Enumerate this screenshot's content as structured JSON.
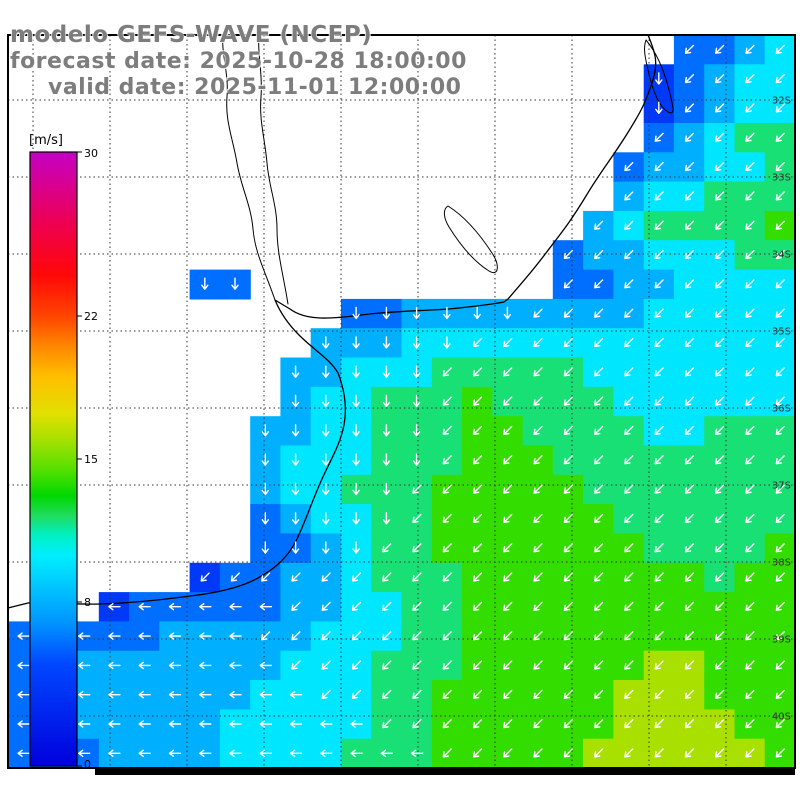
{
  "title": {
    "line1": "modelo GEFS-WAVE (NCEP)",
    "line2": "forecast date: 2025-10-28 18:00:00",
    "line3": "valid date: 2025-11-01 12:00:00"
  },
  "colorbar": {
    "unit_label": "[m/s]",
    "min": 0,
    "max": 30,
    "ticks": [
      "30",
      "22",
      "15",
      "8",
      "0"
    ]
  },
  "axes": {
    "lat_labels": [
      "32S",
      "33S",
      "34S",
      "35S",
      "36S",
      "37S",
      "38S",
      "39S",
      "40S"
    ]
  },
  "chart_data": {
    "type": "heatmap",
    "title": "GEFS-WAVE wind/wave field with direction arrows",
    "units": "m/s",
    "grid_cols": 26,
    "grid_rows": 25,
    "speed_encoding": "each char: digit*2 = speed in m/s, '.' = land",
    "dir_encoding": "arrow points: a=E b=SE c=S d=SW e=W f=NW g=N h=NE, '.' = land",
    "colormap": [
      [
        0,
        "#0000dc"
      ],
      [
        5,
        "#0048ff"
      ],
      [
        7,
        "#0094ff"
      ],
      [
        9,
        "#00ccff"
      ],
      [
        10.3,
        "#00eeff"
      ],
      [
        11.3,
        "#00f0c0"
      ],
      [
        12.2,
        "#20dc60"
      ],
      [
        13.2,
        "#00d800"
      ],
      [
        14.5,
        "#55e000"
      ],
      [
        16,
        "#aae000"
      ],
      [
        17.2,
        "#e0e000"
      ],
      [
        19,
        "#ffc000"
      ],
      [
        20.5,
        "#ff8800"
      ],
      [
        22,
        "#ff4400"
      ],
      [
        24,
        "#ff0808"
      ],
      [
        26.5,
        "#ee0050"
      ],
      [
        30,
        "#c400c4"
      ]
    ],
    "speed_grid": [
      "......................3345",
      ".....................23455",
      ".....................23455",
      ".....................34566",
      "....................344556",
      "....................455666",
      "...................4566667",
      "..................34455566",
      "......33..........33445555",
      "...........334444444455555",
      "..........4445555555555555",
      ".........44555666665555555",
      ".........45566676666555555",
      "........445566677666655666",
      "........455566677766666666",
      "........455666777776666666",
      "........345566777777666666",
      "........334566777777766667",
      "......23344566677777777677",
      "...23333344556677777777777",
      "33333444445556677777777777",
      "33444444455566677777788777",
      "34444444555566777777888777",
      "33444445555566777777888877",
      "33344445555666777778888887"
    ],
    "dir_grid": [
      "......................dddd",
      ".....................cdddd",
      ".....................cdddd",
      ".....................ddddd",
      "....................dddddd",
      "....................dddddd",
      "...................ddddddd",
      "..................dddddddd",
      "......cc..........dddddddd",
      "...........ccccccddddddddd",
      "..........cccccddddddddddd",
      ".........cccccdddddddddddd",
      ".........cccccdddddddddddd",
      "........ccccccdddddddddddd",
      "........ccccccdddddddddddd",
      "........cccccddddddddddddd",
      "........cccccddddddddddddd",
      "........ccccdddddddddddddd",
      "......dddddddddddddddddddd",
      "...eeeeeeddddddddddddddddd",
      "eeeeeeeedddddddddddddddddd",
      "eeeeeeeeeddddddddddddddddd",
      "eeeeeeeeeedddddddddddddddd",
      "eeeeeeeeeeeedddddddddddddd",
      "eeeeeeeeeeeeeedddddddddddd"
    ]
  }
}
